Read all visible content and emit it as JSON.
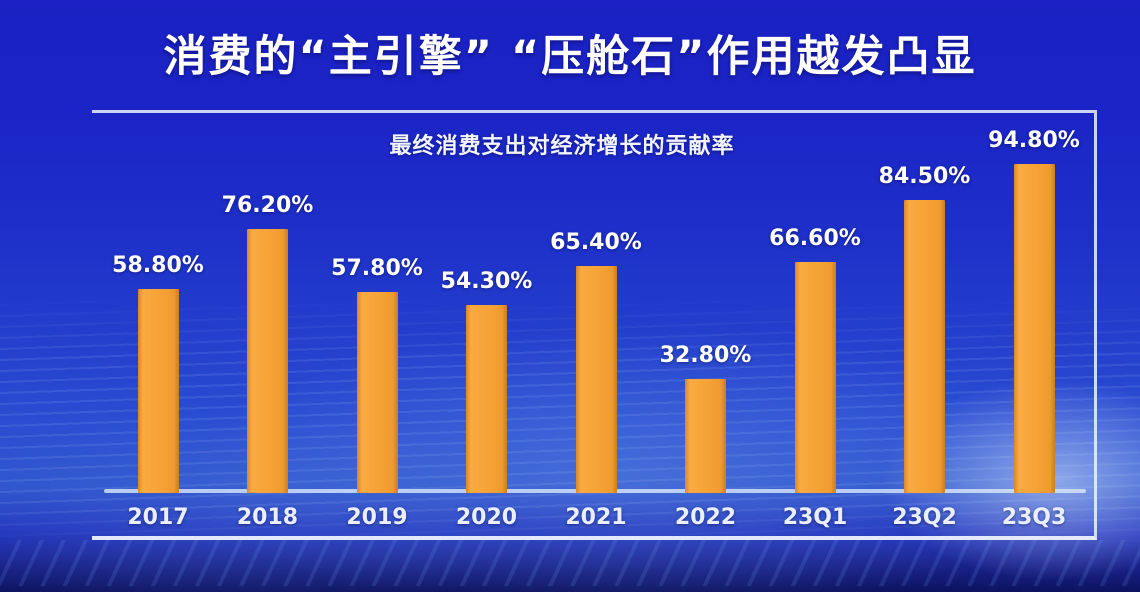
{
  "title": {
    "text": "消费的“主引擎” “压舱石”作用越发凸显"
  },
  "chart_data": {
    "type": "bar",
    "title": "最终消费支出对经济增长的贡献率",
    "categories": [
      "2017",
      "2018",
      "2019",
      "2020",
      "2021",
      "2022",
      "23Q1",
      "23Q2",
      "23Q3"
    ],
    "values": [
      58.8,
      76.2,
      57.8,
      54.3,
      65.4,
      32.8,
      66.6,
      84.5,
      94.8
    ],
    "value_labels": [
      "58.80%",
      "76.20%",
      "57.80%",
      "54.30%",
      "65.40%",
      "32.80%",
      "66.60%",
      "84.50%",
      "94.80%"
    ],
    "xlabel": "",
    "ylabel": "",
    "ylim": [
      0,
      110
    ],
    "grid": false,
    "legend": "none",
    "bar_color": "#F5A238",
    "label_color": "#FFFFFF",
    "axis_line_color": "#D8E5F9",
    "frame_color": "#ECF3FF",
    "background_top_color": "#1B21C2",
    "background_mid_color": "#2F55CE",
    "background_bottom_color": "#0D135F"
  }
}
